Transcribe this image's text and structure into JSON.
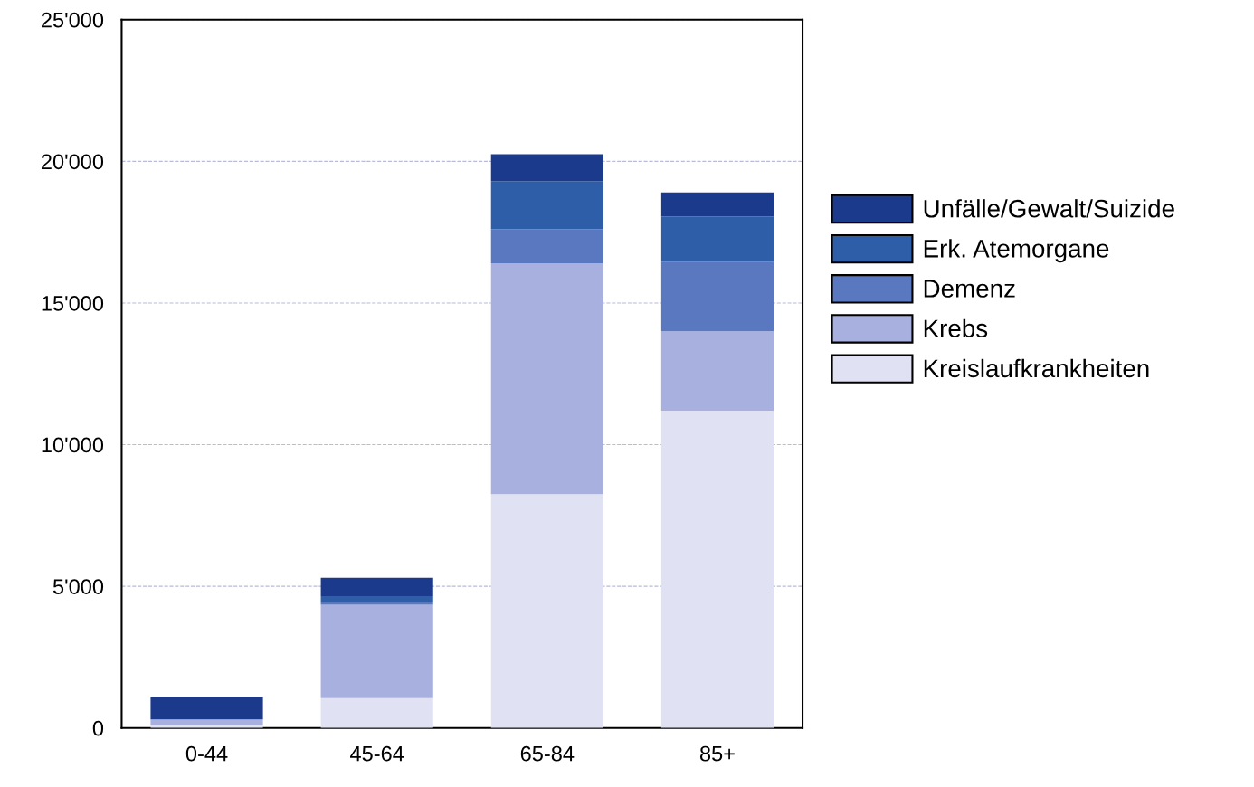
{
  "chart_data": {
    "type": "bar",
    "stacked": true,
    "categories": [
      "0-44",
      "45-64",
      "65-84",
      "85+"
    ],
    "series": [
      {
        "name": "Kreislaufkrankheiten",
        "color": "#e0e2f4",
        "values": [
          100,
          1050,
          8250,
          11200
        ]
      },
      {
        "name": "Krebs",
        "color": "#a8b0e0",
        "values": [
          200,
          3300,
          8150,
          2800
        ]
      },
      {
        "name": "Demenz",
        "color": "#5a78c0",
        "values": [
          0,
          100,
          1200,
          2450
        ]
      },
      {
        "name": "Erk. Atemorgane",
        "color": "#2f5ea8",
        "values": [
          0,
          200,
          1700,
          1600
        ]
      },
      {
        "name": "Unfälle/Gewalt/Suizide",
        "color": "#1c3a8c",
        "values": [
          800,
          650,
          950,
          850
        ]
      }
    ],
    "ylim": [
      0,
      25000
    ],
    "yticks": [
      {
        "value": 0,
        "label": "0"
      },
      {
        "value": 5000,
        "label": "5'000"
      },
      {
        "value": 10000,
        "label": "10'000"
      },
      {
        "value": 15000,
        "label": "15'000"
      },
      {
        "value": 20000,
        "label": "20'000"
      },
      {
        "value": 25000,
        "label": "25'000"
      }
    ],
    "grid": "y",
    "legend": "right"
  }
}
